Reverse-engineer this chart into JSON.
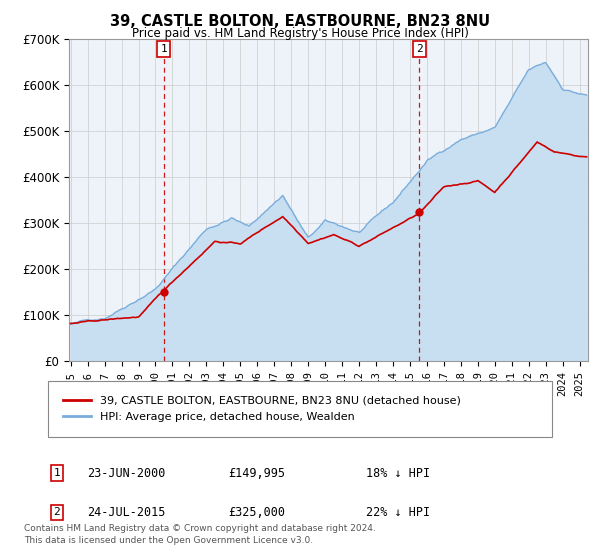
{
  "title": "39, CASTLE BOLTON, EASTBOURNE, BN23 8NU",
  "subtitle": "Price paid vs. HM Land Registry's House Price Index (HPI)",
  "legend_label_red": "39, CASTLE BOLTON, EASTBOURNE, BN23 8NU (detached house)",
  "legend_label_blue": "HPI: Average price, detached house, Wealden",
  "ylim": [
    0,
    700000
  ],
  "yticks": [
    0,
    100000,
    200000,
    300000,
    400000,
    500000,
    600000,
    700000
  ],
  "ytick_labels": [
    "£0",
    "£100K",
    "£200K",
    "£300K",
    "£400K",
    "£500K",
    "£600K",
    "£700K"
  ],
  "xlim_start": 1994.9,
  "xlim_end": 2025.5,
  "marker1_x": 2000.48,
  "marker1_y": 149995,
  "marker1_label": "1",
  "marker1_date": "23-JUN-2000",
  "marker1_price": "£149,995",
  "marker1_hpi": "18% ↓ HPI",
  "marker2_x": 2015.56,
  "marker2_y": 325000,
  "marker2_label": "2",
  "marker2_date": "24-JUL-2015",
  "marker2_price": "£325,000",
  "marker2_hpi": "22% ↓ HPI",
  "vline1_x": 2000.48,
  "vline2_x": 2015.56,
  "red_color": "#cc0000",
  "blue_color": "#7aaddc",
  "blue_fill_color": "#c8dff2",
  "grid_color": "#cccccc",
  "background_color": "#eef3fa",
  "footnote_line1": "Contains HM Land Registry data © Crown copyright and database right 2024.",
  "footnote_line2": "This data is licensed under the Open Government Licence v3.0."
}
